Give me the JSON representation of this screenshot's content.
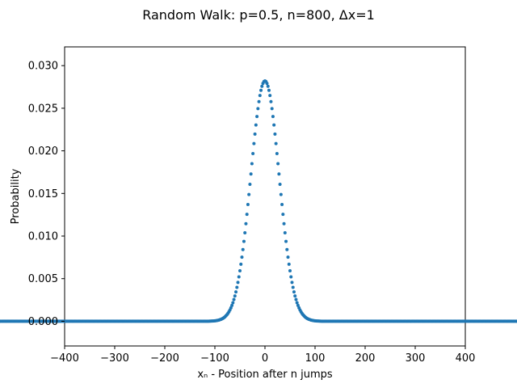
{
  "chart_data": {
    "type": "scatter",
    "title": "Random Walk: p=0.5, n=800, Δx=1",
    "xlabel": "xₙ - Position after n jumps",
    "ylabel": "Probability",
    "xlim": [
      -400,
      400
    ],
    "ylim": [
      -0.0029,
      0.0322
    ],
    "x_ticks": [
      -400,
      -300,
      -200,
      -100,
      0,
      100,
      200,
      300,
      400
    ],
    "x_tick_labels": [
      "−400",
      "−300",
      "−200",
      "−100",
      "0",
      "100",
      "200",
      "300",
      "400"
    ],
    "y_ticks": [
      0.0,
      0.005,
      0.01,
      0.015,
      0.02,
      0.025,
      0.03
    ],
    "y_tick_labels": [
      "0.000",
      "0.005",
      "0.010",
      "0.015",
      "0.020",
      "0.025",
      "0.030"
    ],
    "grid": false,
    "legend": "none",
    "series": [
      {
        "color": "#1f77b4",
        "description": "Binomial probabilities P(x) for x = -400..400 step 2, computed in script with n=800, p=0.5, Δx=1",
        "params": {
          "n": 800,
          "p": 0.5,
          "dx": 1
        }
      }
    ]
  }
}
